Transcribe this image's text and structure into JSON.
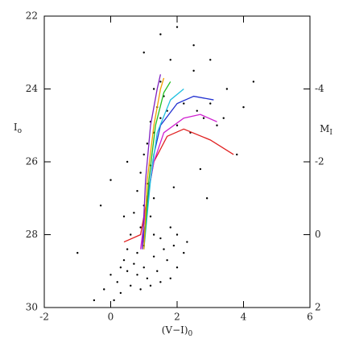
{
  "chart_data": {
    "type": "scatter",
    "xlabel": "(V−I)",
    "xlabel_sub": "0",
    "ylabel": "I",
    "ylabel_sub": "o",
    "y2label": "M",
    "y2label_sub": "I",
    "xlim": [
      -2,
      6
    ],
    "xticks": [
      -2,
      0,
      2,
      4,
      6
    ],
    "ylim": [
      30,
      22
    ],
    "yticks": [
      22,
      24,
      26,
      28,
      30
    ],
    "y2lim": [
      2,
      -6
    ],
    "y2ticks": [
      -4,
      -2,
      0,
      2
    ],
    "points": {
      "color": "#000000",
      "x": [
        0.2,
        0.5,
        0.8,
        1.1,
        1.4,
        1.7,
        2.0,
        0.3,
        0.6,
        0.9,
        1.2,
        1.5,
        1.8,
        0.1,
        0.4,
        0.7,
        1.0,
        1.3,
        1.6,
        1.9,
        2.2,
        0.0,
        0.5,
        1.0,
        1.5,
        2.0,
        -0.2,
        0.3,
        0.8,
        1.3,
        1.8,
        2.3,
        0.6,
        0.9,
        1.2,
        0.7,
        1.0,
        1.3,
        0.8,
        1.1,
        0.9,
        1.2,
        1.0,
        1.1,
        1.3,
        1.5,
        1.2,
        1.4,
        1.6,
        1.3,
        1.5,
        1.7,
        2.0,
        2.4,
        2.8,
        3.2,
        2.2,
        2.6,
        3.0,
        3.4,
        1.8,
        2.5,
        3.5,
        4.0,
        0.4,
        -0.5,
        -1.0,
        0.0,
        2.7,
        3.8,
        4.3,
        1.0,
        1.5,
        2.0,
        2.5,
        3.0,
        0.5,
        -0.3,
        1.9,
        2.9
      ],
      "y": [
        29.3,
        29.0,
        29.1,
        29.2,
        29.0,
        28.7,
        28.9,
        29.6,
        29.4,
        29.5,
        29.4,
        29.3,
        29.2,
        29.8,
        28.7,
        28.8,
        28.9,
        28.6,
        28.4,
        28.3,
        28.5,
        29.1,
        28.4,
        28.3,
        28.1,
        28.0,
        29.5,
        28.9,
        28.5,
        28.0,
        27.8,
        28.2,
        28.0,
        27.8,
        27.5,
        27.4,
        27.2,
        27.0,
        26.8,
        26.6,
        26.3,
        26.1,
        25.8,
        25.5,
        25.2,
        24.8,
        24.9,
        24.5,
        24.2,
        24.0,
        23.8,
        24.6,
        25.0,
        25.2,
        24.8,
        25.0,
        24.4,
        24.6,
        24.4,
        24.8,
        23.2,
        23.5,
        24.0,
        24.5,
        27.5,
        29.8,
        28.5,
        26.5,
        26.2,
        25.8,
        23.8,
        23.0,
        22.5,
        22.3,
        22.8,
        23.2,
        26.0,
        27.2,
        26.7,
        27.0
      ]
    },
    "series": [
      {
        "color": "#e02020",
        "x": [
          0.4,
          0.9,
          1.1,
          1.3,
          1.7,
          2.2,
          3.0,
          3.7
        ],
        "y": [
          28.2,
          28.0,
          27.0,
          26.0,
          25.3,
          25.1,
          25.4,
          25.8
        ]
      },
      {
        "color": "#d020d0",
        "x": [
          0.9,
          1.1,
          1.3,
          1.6,
          2.2,
          2.7,
          3.2
        ],
        "y": [
          28.4,
          27.0,
          26.0,
          25.2,
          24.8,
          24.7,
          24.9
        ]
      },
      {
        "color": "#2030d0",
        "x": [
          0.95,
          1.15,
          1.3,
          1.5,
          2.0,
          2.5,
          3.1
        ],
        "y": [
          28.4,
          26.8,
          25.8,
          25.0,
          24.4,
          24.2,
          24.3
        ]
      },
      {
        "color": "#20c0e0",
        "x": [
          1.0,
          1.2,
          1.4,
          1.8,
          2.2
        ],
        "y": [
          28.4,
          26.5,
          25.2,
          24.3,
          24.0
        ]
      },
      {
        "color": "#20c020",
        "x": [
          1.0,
          1.15,
          1.35,
          1.6,
          1.8
        ],
        "y": [
          28.4,
          26.5,
          25.0,
          24.1,
          23.8
        ]
      },
      {
        "color": "#f0a000",
        "x": [
          1.0,
          1.1,
          1.3,
          1.5,
          1.6
        ],
        "y": [
          28.4,
          26.5,
          25.0,
          24.0,
          23.7
        ]
      },
      {
        "color": "#8020c0",
        "x": [
          0.95,
          1.05,
          1.2,
          1.4,
          1.5
        ],
        "y": [
          28.4,
          26.5,
          25.0,
          24.0,
          23.6
        ]
      }
    ]
  }
}
